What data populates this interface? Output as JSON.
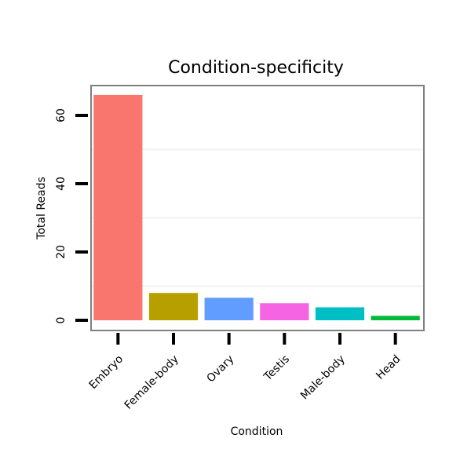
{
  "chart_data": {
    "type": "bar",
    "title": "Condition-specificity",
    "xlabel": "Condition",
    "ylabel": "Total Reads",
    "categories": [
      "Embryo",
      "Female-body",
      "Ovary",
      "Testis",
      "Male-body",
      "Head"
    ],
    "values": [
      66,
      8,
      6.6,
      5,
      3.8,
      1.3
    ],
    "colors": [
      "#F8766D",
      "#B79F00",
      "#619CFF",
      "#F564E3",
      "#00BFC4",
      "#00BA38"
    ],
    "ylim": [
      0,
      68.5
    ],
    "yticks": [
      0,
      20,
      40,
      60
    ],
    "grid": true,
    "legend": "none"
  }
}
